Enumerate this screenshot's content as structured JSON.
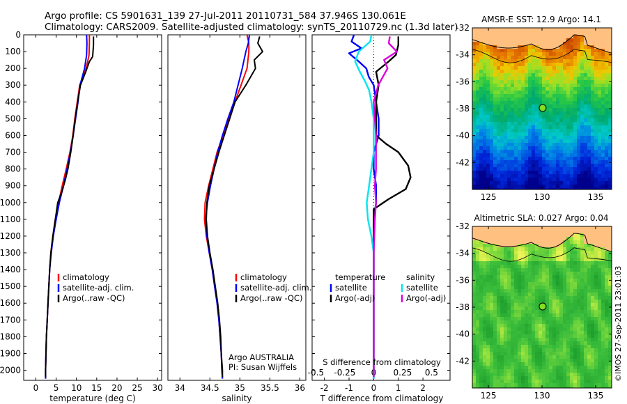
{
  "header": {
    "line1": "Argo profile: CS 5901631_139 27-Jul-2011 20110731_584 37.946S 130.061E",
    "line2": "Climatology: CARS2009. Satellite-adjusted climatology: synTS_20110729.nc (1.3d later)"
  },
  "credit": "©IMOS 27-Sep-2011 23:01:03",
  "colors": {
    "red": "#ff0000",
    "blue": "#0000ff",
    "black": "#000000",
    "cyan": "#00e5ee",
    "magenta": "#dd00dd",
    "land": "#ffc080",
    "marker": "#80e020"
  },
  "chart_data": [
    {
      "id": "temperature",
      "type": "line",
      "xlabel": "temperature (deg C)",
      "ylabel": "",
      "xlim": [
        -3,
        31
      ],
      "ylim": [
        2060,
        0
      ],
      "xticks": [
        0,
        5,
        10,
        15,
        20,
        25,
        30
      ],
      "yticks": [
        0,
        100,
        200,
        300,
        400,
        500,
        600,
        700,
        800,
        900,
        1000,
        1100,
        1200,
        1300,
        1400,
        1500,
        1600,
        1700,
        1800,
        1900,
        2000
      ],
      "legend": [
        "climatology",
        "satellite-adj. clim.",
        "Argo(..raw -QC)"
      ],
      "series": [
        {
          "name": "climatology",
          "color": "red",
          "pts": [
            [
              13.2,
              0
            ],
            [
              13.2,
              50
            ],
            [
              13.1,
              120
            ],
            [
              12.4,
              200
            ],
            [
              10.8,
              300
            ],
            [
              10.2,
              400
            ],
            [
              9.6,
              500
            ],
            [
              9.1,
              600
            ],
            [
              8.4,
              700
            ],
            [
              7.5,
              800
            ],
            [
              6.5,
              900
            ],
            [
              5.6,
              1000
            ],
            [
              4.8,
              1100
            ],
            [
              4.2,
              1200
            ],
            [
              3.7,
              1300
            ],
            [
              3.4,
              1400
            ],
            [
              3.2,
              1500
            ],
            [
              3.0,
              1600
            ],
            [
              2.8,
              1700
            ],
            [
              2.6,
              1800
            ],
            [
              2.5,
              1900
            ],
            [
              2.4,
              2000
            ],
            [
              2.4,
              2050
            ]
          ]
        },
        {
          "name": "satellite",
          "color": "blue",
          "pts": [
            [
              12.5,
              0
            ],
            [
              12.6,
              50
            ],
            [
              12.5,
              120
            ],
            [
              12.0,
              200
            ],
            [
              10.9,
              300
            ],
            [
              10.4,
              400
            ],
            [
              9.8,
              500
            ],
            [
              9.2,
              600
            ],
            [
              8.5,
              700
            ],
            [
              7.7,
              800
            ],
            [
              6.8,
              900
            ],
            [
              5.8,
              1000
            ],
            [
              5.0,
              1100
            ],
            [
              4.3,
              1200
            ],
            [
              3.8,
              1300
            ],
            [
              3.4,
              1400
            ],
            [
              3.2,
              1500
            ],
            [
              3.0,
              1600
            ],
            [
              2.8,
              1700
            ],
            [
              2.6,
              1800
            ],
            [
              2.5,
              1900
            ],
            [
              2.4,
              2000
            ],
            [
              2.4,
              2050
            ]
          ]
        },
        {
          "name": "argo",
          "color": "black",
          "pts": [
            [
              14.2,
              10
            ],
            [
              14.2,
              60
            ],
            [
              14.0,
              130
            ],
            [
              13.2,
              160
            ],
            [
              12.3,
              220
            ],
            [
              11.0,
              300
            ],
            [
              10.3,
              400
            ],
            [
              9.7,
              500
            ],
            [
              9.2,
              600
            ],
            [
              8.6,
              700
            ],
            [
              7.9,
              800
            ],
            [
              7.3,
              860
            ],
            [
              6.5,
              930
            ],
            [
              5.4,
              1000
            ],
            [
              4.8,
              1100
            ],
            [
              4.2,
              1200
            ],
            [
              3.7,
              1300
            ],
            [
              3.4,
              1400
            ],
            [
              3.2,
              1500
            ],
            [
              3.0,
              1600
            ],
            [
              2.8,
              1700
            ],
            [
              2.6,
              1800
            ],
            [
              2.5,
              1900
            ],
            [
              2.4,
              2000
            ],
            [
              2.4,
              2040
            ]
          ]
        }
      ]
    },
    {
      "id": "salinity",
      "type": "line",
      "xlabel": "salinity",
      "ylabel": "",
      "xlim": [
        33.8,
        36.1
      ],
      "ylim": [
        2060,
        0
      ],
      "xticks": [
        34,
        34.5,
        35,
        35.5,
        36
      ],
      "xticklabels": [
        "34",
        "34.5",
        "35",
        "35.5",
        "36"
      ],
      "legend": [
        "climatology",
        "satellite-adj. clim.",
        "Argo(..raw -QC)"
      ],
      "annotation": [
        "Argo AUSTRALIA",
        "PI: Susan Wijffels"
      ],
      "series": [
        {
          "name": "climatology",
          "color": "red",
          "pts": [
            [
              35.12,
              0
            ],
            [
              35.15,
              50
            ],
            [
              35.15,
              100
            ],
            [
              35.12,
              200
            ],
            [
              35.02,
              300
            ],
            [
              34.92,
              400
            ],
            [
              34.82,
              500
            ],
            [
              34.72,
              600
            ],
            [
              34.62,
              700
            ],
            [
              34.55,
              800
            ],
            [
              34.48,
              900
            ],
            [
              34.42,
              1000
            ],
            [
              34.41,
              1100
            ],
            [
              34.44,
              1200
            ],
            [
              34.49,
              1300
            ],
            [
              34.54,
              1400
            ],
            [
              34.58,
              1500
            ],
            [
              34.62,
              1600
            ],
            [
              34.65,
              1700
            ],
            [
              34.67,
              1800
            ],
            [
              34.69,
              1900
            ],
            [
              34.7,
              2000
            ],
            [
              34.71,
              2050
            ]
          ]
        },
        {
          "name": "satellite",
          "color": "blue",
          "pts": [
            [
              35.16,
              0
            ],
            [
              35.14,
              50
            ],
            [
              35.1,
              100
            ],
            [
              35.04,
              200
            ],
            [
              34.97,
              300
            ],
            [
              34.9,
              400
            ],
            [
              34.8,
              500
            ],
            [
              34.71,
              600
            ],
            [
              34.63,
              700
            ],
            [
              34.57,
              800
            ],
            [
              34.51,
              900
            ],
            [
              34.46,
              1000
            ],
            [
              34.43,
              1100
            ],
            [
              34.45,
              1200
            ],
            [
              34.49,
              1300
            ],
            [
              34.54,
              1400
            ],
            [
              34.58,
              1500
            ],
            [
              34.62,
              1600
            ],
            [
              34.65,
              1700
            ],
            [
              34.67,
              1800
            ],
            [
              34.69,
              1900
            ],
            [
              34.7,
              2000
            ],
            [
              34.71,
              2050
            ]
          ]
        },
        {
          "name": "argo",
          "color": "black",
          "pts": [
            [
              35.33,
              10
            ],
            [
              35.3,
              50
            ],
            [
              35.38,
              100
            ],
            [
              35.24,
              150
            ],
            [
              35.26,
              200
            ],
            [
              35.1,
              300
            ],
            [
              34.92,
              400
            ],
            [
              34.83,
              500
            ],
            [
              34.74,
              600
            ],
            [
              34.65,
              700
            ],
            [
              34.57,
              800
            ],
            [
              34.49,
              900
            ],
            [
              34.45,
              1000
            ],
            [
              34.44,
              1100
            ],
            [
              34.46,
              1200
            ],
            [
              34.5,
              1300
            ],
            [
              34.55,
              1400
            ],
            [
              34.59,
              1500
            ],
            [
              34.63,
              1600
            ],
            [
              34.66,
              1700
            ],
            [
              34.68,
              1800
            ],
            [
              34.69,
              1900
            ],
            [
              34.71,
              2000
            ],
            [
              34.71,
              2040
            ]
          ]
        }
      ]
    },
    {
      "id": "difference",
      "type": "line",
      "xlabel": "T difference from climatology",
      "xlabel_top": "S difference from climatology",
      "xlim": [
        -2.5,
        3.1
      ],
      "ylim": [
        2060,
        0
      ],
      "xticks": [
        -2,
        -1,
        0,
        1,
        2
      ],
      "xticks_top": [
        -0.5,
        -0.25,
        0,
        0.25,
        0.5
      ],
      "xticks_top_labels": [
        "-0.5",
        "-0.25",
        "0",
        "0.25",
        "0.5"
      ],
      "legend_temperature": [
        "temperature",
        "satellite",
        "Argo(-adj)"
      ],
      "legend_salinity": [
        "salinity",
        "satellite",
        "Argo(-adj)"
      ],
      "series": [
        {
          "name": "T satellite",
          "color": "blue",
          "pts": [
            [
              -0.8,
              0
            ],
            [
              -0.9,
              40
            ],
            [
              -0.5,
              80
            ],
            [
              -1.0,
              110
            ],
            [
              -0.6,
              160
            ],
            [
              -0.3,
              200
            ],
            [
              -0.2,
              250
            ],
            [
              0.0,
              300
            ],
            [
              0.1,
              400
            ],
            [
              0.2,
              500
            ],
            [
              0.2,
              600
            ],
            [
              0.0,
              700
            ],
            [
              0.0,
              800
            ],
            [
              0.1,
              900
            ],
            [
              0.1,
              1000
            ],
            [
              0.0,
              1100
            ],
            [
              0.0,
              1300
            ],
            [
              0.0,
              1600
            ],
            [
              0.0,
              2000
            ],
            [
              0.0,
              2050
            ]
          ]
        },
        {
          "name": "T argo",
          "color": "black",
          "pts": [
            [
              1.0,
              10
            ],
            [
              1.0,
              60
            ],
            [
              0.9,
              120
            ],
            [
              0.6,
              160
            ],
            [
              0.1,
              220
            ],
            [
              0.2,
              300
            ],
            [
              0.1,
              400
            ],
            [
              0.1,
              500
            ],
            [
              0.1,
              600
            ],
            [
              0.5,
              650
            ],
            [
              1.0,
              700
            ],
            [
              1.4,
              780
            ],
            [
              1.5,
              850
            ],
            [
              1.3,
              920
            ],
            [
              0.6,
              980
            ],
            [
              0.0,
              1040
            ],
            [
              0.0,
              1100
            ],
            [
              0.0,
              1300
            ],
            [
              0.0,
              1600
            ],
            [
              0.0,
              2000
            ],
            [
              0.0,
              2040
            ]
          ]
        },
        {
          "name": "S satellite",
          "color": "cyan",
          "pts": [
            [
              -0.02,
              0
            ],
            [
              -0.03,
              40
            ],
            [
              -0.13,
              100
            ],
            [
              -0.16,
              160
            ],
            [
              -0.12,
              220
            ],
            [
              -0.08,
              270
            ],
            [
              -0.04,
              330
            ],
            [
              -0.02,
              400
            ],
            [
              0.0,
              500
            ],
            [
              0.0,
              700
            ],
            [
              -0.02,
              800
            ],
            [
              -0.04,
              900
            ],
            [
              -0.06,
              1000
            ],
            [
              -0.05,
              1100
            ],
            [
              -0.02,
              1200
            ],
            [
              0.0,
              1300
            ],
            [
              0.0,
              1600
            ],
            [
              0.0,
              2000
            ],
            [
              0.0,
              2050
            ]
          ]
        },
        {
          "name": "S argo",
          "color": "magenta",
          "pts": [
            [
              0.14,
              10
            ],
            [
              0.13,
              50
            ],
            [
              0.2,
              100
            ],
            [
              0.09,
              150
            ],
            [
              0.12,
              200
            ],
            [
              0.04,
              300
            ],
            [
              0.0,
              400
            ],
            [
              0.01,
              500
            ],
            [
              0.02,
              600
            ],
            [
              0.02,
              700
            ],
            [
              0.02,
              800
            ],
            [
              0.01,
              900
            ],
            [
              0.02,
              1000
            ],
            [
              0.01,
              1100
            ],
            [
              0.0,
              1300
            ],
            [
              0.0,
              1600
            ],
            [
              0.0,
              2000
            ],
            [
              0.0,
              2040
            ]
          ]
        }
      ]
    },
    {
      "id": "sst_map",
      "type": "heatmap",
      "title": "AMSR-E SST: 12.9 Argo: 14.1",
      "xlim": [
        123.5,
        136.5
      ],
      "ylim": [
        -44,
        -32
      ],
      "xticks": [
        125,
        130,
        135
      ],
      "yticks": [
        -32,
        -34,
        -36,
        -38,
        -40,
        -42
      ],
      "yticklabels": [
        "-32",
        "-34",
        "-36",
        "-38",
        "-40",
        "-42"
      ],
      "argo_position": [
        130.061,
        -37.946
      ]
    },
    {
      "id": "sla_map",
      "type": "heatmap",
      "title": "Altimetric SLA: 0.027 Argo: 0.04",
      "xlim": [
        123.5,
        136.5
      ],
      "ylim": [
        -44,
        -32
      ],
      "xticks": [
        125,
        130,
        135
      ],
      "yticks": [
        -32,
        -34,
        -36,
        -38,
        -40,
        -42
      ],
      "yticklabels": [
        "-32",
        "-34",
        "-36",
        "-38",
        "-40",
        "-42"
      ],
      "argo_position": [
        130.061,
        -37.946
      ]
    }
  ]
}
